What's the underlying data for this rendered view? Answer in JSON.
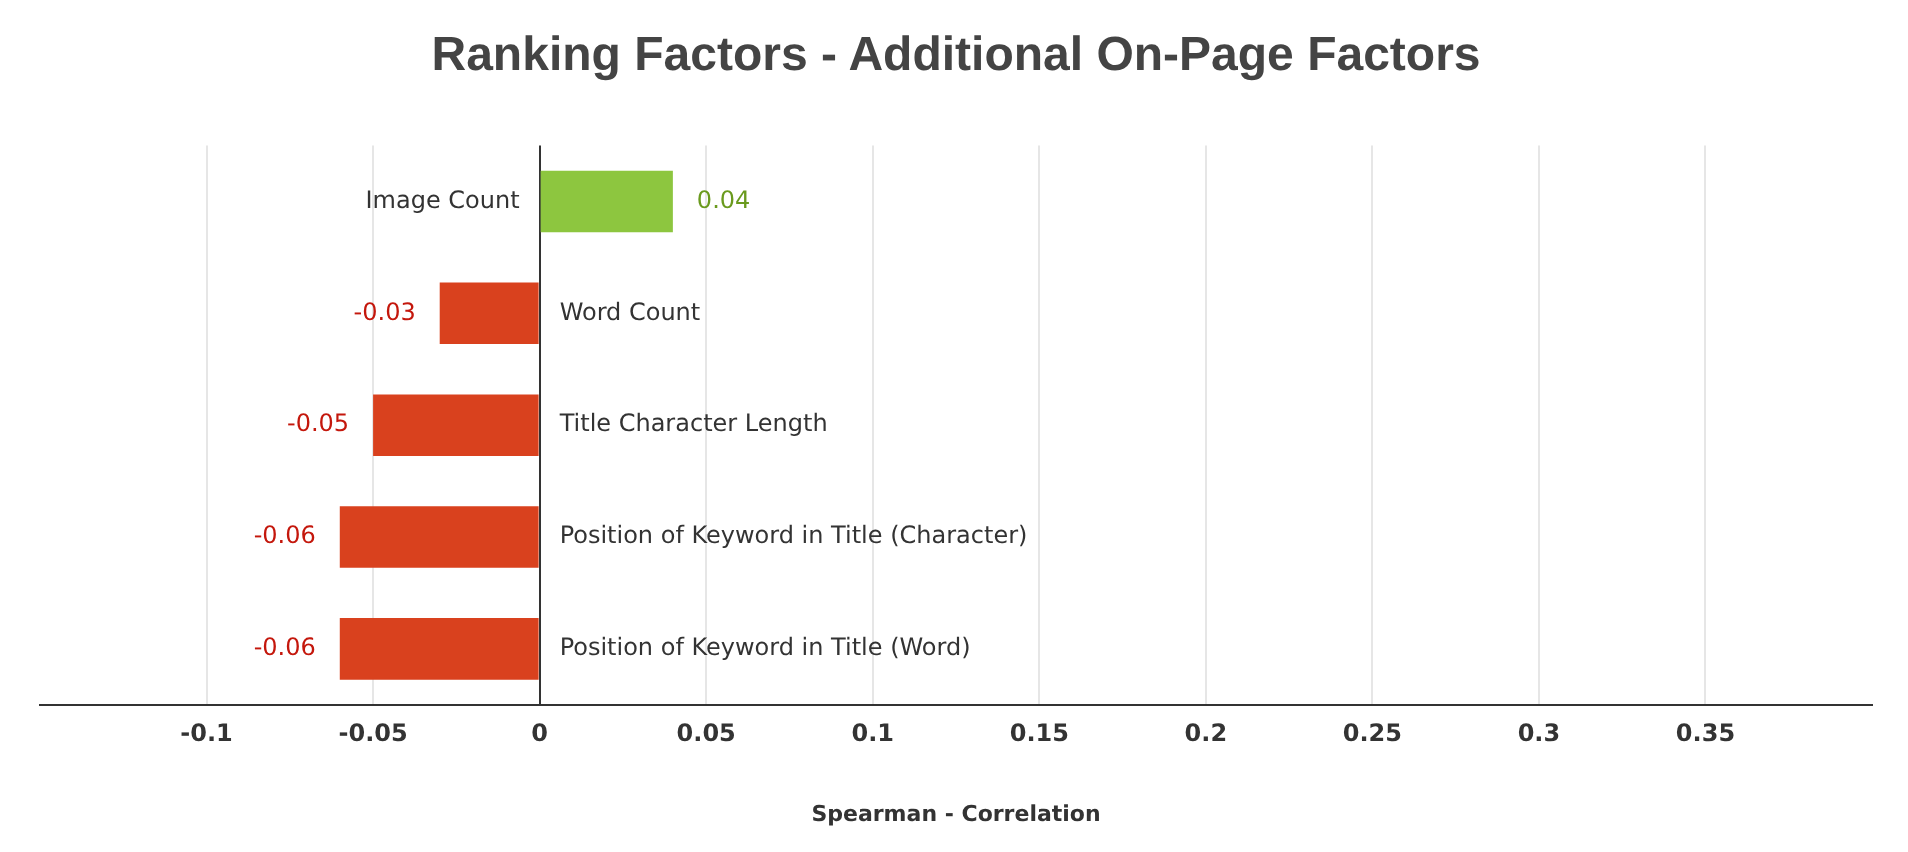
{
  "chart_data": {
    "type": "bar",
    "orientation": "horizontal",
    "title": "Ranking Factors - Additional On-Page Factors",
    "xlabel": "Spearman - Correlation",
    "categories": [
      "Image Count",
      "Word Count",
      "Title Character Length",
      "Position of Keyword in Title (Character)",
      "Position of Keyword in Title (Word)"
    ],
    "values": [
      0.04,
      -0.03,
      -0.05,
      -0.06,
      -0.06
    ],
    "colors": [
      "#8dc63f",
      "#d9411e",
      "#d9411e",
      "#d9411e",
      "#d9411e"
    ],
    "xlim": [
      -0.15,
      0.4
    ],
    "xticks": [
      -0.1,
      -0.05,
      0,
      0.05,
      0.1,
      0.15,
      0.2,
      0.25,
      0.3,
      0.35
    ],
    "grid": "x",
    "legend": false,
    "data_labels": true
  }
}
